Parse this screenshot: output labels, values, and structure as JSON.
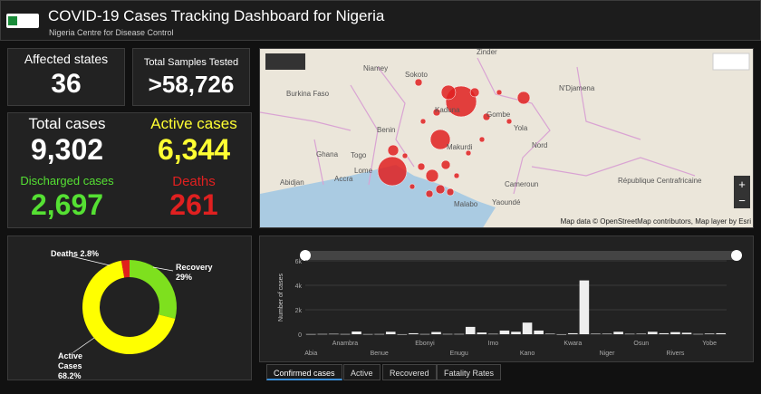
{
  "header": {
    "title": "COVID-19 Cases Tracking Dashboard for Nigeria",
    "subtitle": "Nigeria Centre for Disease Control"
  },
  "stats": {
    "affected_label": "Affected states",
    "affected_value": "36",
    "samples_label": "Total Samples Tested",
    "samples_value": ">58,726",
    "total_label": "Total cases",
    "total_value": "9,302",
    "active_label": "Active cases",
    "active_value": "6,344",
    "discharged_label": "Discharged cases",
    "discharged_value": "2,697",
    "deaths_label": "Deaths",
    "deaths_value": "261"
  },
  "map": {
    "labels": [
      "Niamey",
      "Sokoto",
      "Zinder",
      "N'Djamena",
      "Burkina Faso",
      "Kaduna",
      "Gombe",
      "Benin",
      "Yola",
      "Makurdi",
      "Nord",
      "Ghana",
      "Togo",
      "Lome",
      "Accra",
      "Abidjan",
      "Cameroun",
      "Malabo",
      "Yaoundé",
      "République Centrafricaine"
    ],
    "attribution": "Map data © OpenStreetMap contributors, Map layer by Esri",
    "zoom_in": "+",
    "zoom_out": "−"
  },
  "tabs": [
    "Confirmed cases",
    "Active",
    "Recovered",
    "Fatality Rates"
  ],
  "chart_data": [
    {
      "type": "donut",
      "categories": [
        "Deaths",
        "Recovery",
        "Active Cases"
      ],
      "values": [
        2.8,
        29,
        68.2
      ],
      "value_labels": [
        "2.8%",
        "29%",
        "68.2%"
      ],
      "colors": [
        "#e0201c",
        "#7ee01e",
        "#ffff00"
      ]
    },
    {
      "type": "bar",
      "ylabel": "Number of cases",
      "color": "#eeeeee",
      "grid": true,
      "categories": [
        "Abia",
        null,
        null,
        "Anambra",
        null,
        null,
        "Benue",
        null,
        null,
        null,
        "Ebonyi",
        null,
        null,
        "Enugu",
        null,
        null,
        "Imo",
        null,
        null,
        "Kano",
        null,
        null,
        null,
        "Kwara",
        null,
        null,
        "Niger",
        null,
        null,
        "Osun",
        null,
        null,
        "Rivers",
        null,
        null,
        "Yobe",
        null
      ],
      "values": [
        10,
        20,
        30,
        15,
        220,
        10,
        15,
        200,
        0,
        80,
        15,
        180,
        20,
        20,
        600,
        140,
        30,
        300,
        200,
        950,
        300,
        40,
        0,
        80,
        4400,
        40,
        40,
        200,
        30,
        40,
        200,
        80,
        170,
        120,
        20,
        50,
        80
      ],
      "ylim": [
        0,
        6000
      ],
      "yticks": [
        0,
        {
          "value": 2000,
          "label": "2k"
        },
        {
          "value": 4000,
          "label": "4k"
        },
        {
          "value": 6000,
          "label": "6k"
        }
      ]
    }
  ]
}
